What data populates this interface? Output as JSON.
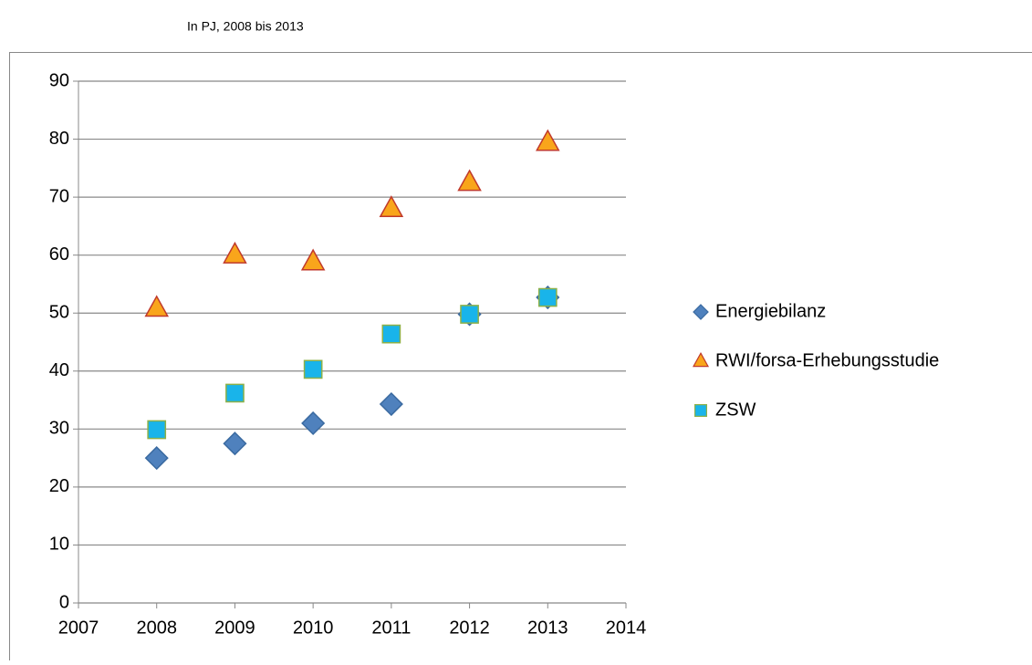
{
  "chart_data": {
    "type": "scatter",
    "subtitle": "In PJ, 2008 bis 2013",
    "x": [
      2008,
      2009,
      2010,
      2011,
      2012,
      2013
    ],
    "series": [
      {
        "name": "Energiebilanz",
        "color": "#4f81bd",
        "edgecolor": "#3a6aa0",
        "marker": "diamond",
        "values": [
          25,
          27.5,
          31,
          34.3,
          49.8,
          52.7
        ]
      },
      {
        "name": "RWI/forsa-Erhebungsstudie",
        "color": "#f9a51b",
        "edgecolor": "#c0392b",
        "marker": "triangle",
        "values": [
          50.8,
          60,
          58.8,
          68,
          72.5,
          79.4
        ]
      },
      {
        "name": "ZSW",
        "color": "#19b4ea",
        "edgecolor": "#8db048",
        "marker": "square",
        "values": [
          29.9,
          36.2,
          40.3,
          46.4,
          49.8,
          52.7
        ]
      }
    ],
    "xlim": [
      2007,
      2014
    ],
    "xticks": [
      2007,
      2008,
      2009,
      2010,
      2011,
      2012,
      2013,
      2014
    ],
    "ylim": [
      0,
      90
    ],
    "yticks": [
      0,
      10,
      20,
      30,
      40,
      50,
      60,
      70,
      80,
      90
    ],
    "grid": true,
    "legend": "right"
  }
}
